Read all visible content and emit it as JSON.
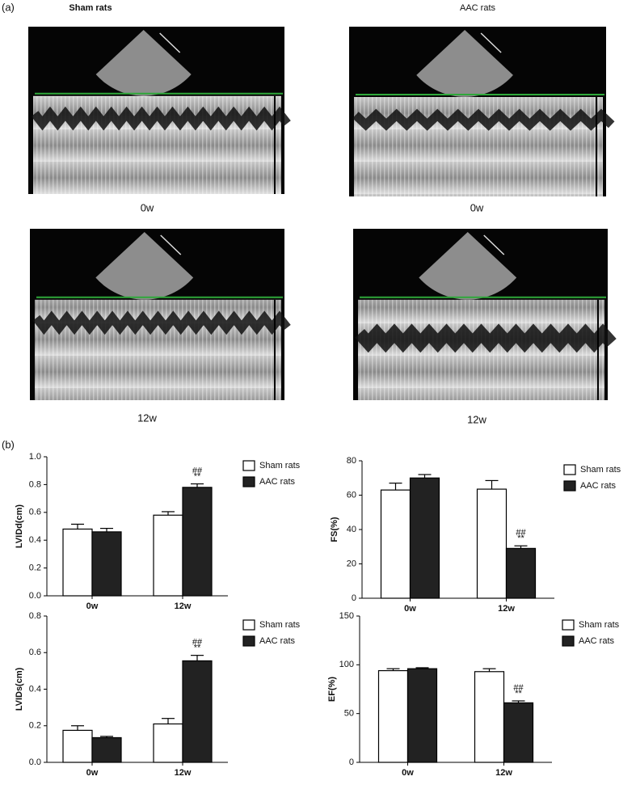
{
  "panel_a": {
    "label": "(a)",
    "columns": [
      "Sham rats",
      "AAC rats"
    ],
    "rows": [
      "0w",
      "12w"
    ]
  },
  "panel_b": {
    "label": "(b)"
  },
  "chart_data": [
    {
      "type": "bar",
      "y_label": "LVIDd(cm)",
      "categories": [
        "0w",
        "12w"
      ],
      "series": [
        {
          "name": "Sham rats",
          "color": "#ffffff",
          "values": [
            0.48,
            0.58
          ],
          "errors": [
            0.035,
            0.025
          ]
        },
        {
          "name": "AAC rats",
          "color": "#222222",
          "values": [
            0.46,
            0.78
          ],
          "errors": [
            0.025,
            0.025
          ]
        }
      ],
      "ylim": [
        0,
        1.0
      ],
      "yticks": [
        {
          "value": 0,
          "label": "0.0"
        },
        0.2,
        0.4,
        0.6,
        0.8,
        {
          "value": 1.0,
          "label": "1.0"
        }
      ],
      "annotations": [
        "##",
        "**"
      ]
    },
    {
      "type": "bar",
      "y_label": "FS(%)",
      "categories": [
        "0w",
        "12w"
      ],
      "series": [
        {
          "name": "Sham rats",
          "color": "#ffffff",
          "values": [
            63,
            63.5
          ],
          "errors": [
            4,
            5
          ]
        },
        {
          "name": "AAC rats",
          "color": "#222222",
          "values": [
            70,
            29
          ],
          "errors": [
            2,
            1.5
          ]
        }
      ],
      "ylim": [
        0,
        80
      ],
      "yticks": [
        0,
        20,
        40,
        60,
        80
      ],
      "annotations": [
        "##",
        "**"
      ]
    },
    {
      "type": "bar",
      "y_label": "LVIDs(cm)",
      "categories": [
        "0w",
        "12w"
      ],
      "series": [
        {
          "name": "Sham rats",
          "color": "#ffffff",
          "values": [
            0.175,
            0.21
          ],
          "errors": [
            0.025,
            0.03
          ]
        },
        {
          "name": "AAC rats",
          "color": "#222222",
          "values": [
            0.135,
            0.555
          ],
          "errors": [
            0.007,
            0.03
          ]
        }
      ],
      "ylim": [
        0,
        0.8
      ],
      "yticks": [
        {
          "value": 0,
          "label": "0.0"
        },
        0.2,
        0.4,
        0.6,
        0.8
      ],
      "annotations": [
        "##",
        "**"
      ]
    },
    {
      "type": "bar",
      "y_label": "EF(%)",
      "categories": [
        "0w",
        "12w"
      ],
      "series": [
        {
          "name": "Sham rats",
          "color": "#ffffff",
          "values": [
            94,
            93
          ],
          "errors": [
            2,
            3
          ]
        },
        {
          "name": "AAC rats",
          "color": "#222222",
          "values": [
            96,
            61
          ],
          "errors": [
            1,
            2
          ]
        }
      ],
      "ylim": [
        0,
        150
      ],
      "yticks": [
        0,
        50,
        100,
        150
      ],
      "annotations": [
        "##",
        "**"
      ]
    }
  ]
}
